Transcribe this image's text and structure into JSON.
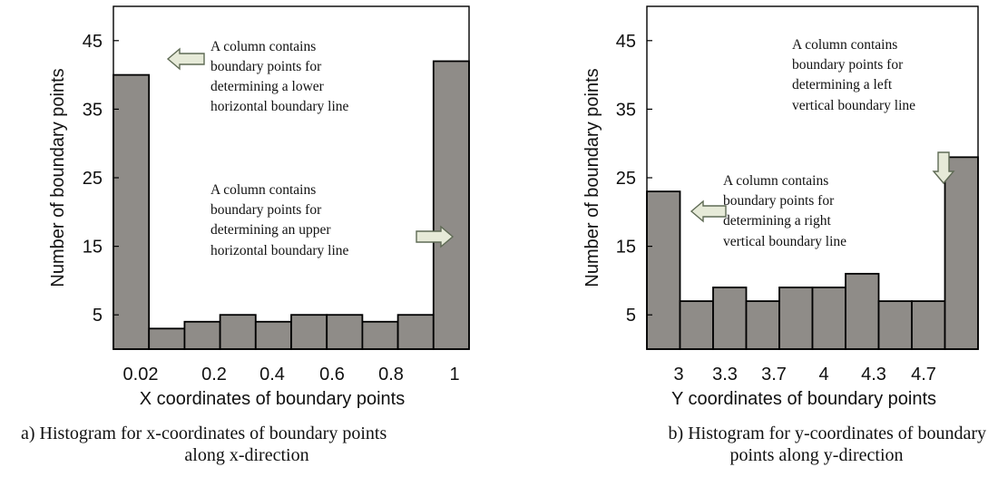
{
  "chart_data": [
    {
      "type": "bar",
      "xlabel": "X coordinates of boundary points",
      "ylabel": "Number of boundary points",
      "ylim": [
        0,
        50
      ],
      "yticks": [
        "5",
        "15",
        "25",
        "35",
        "45"
      ],
      "xticks": [
        "0.02",
        "0.2",
        "0.4",
        "0.6",
        "0.8",
        "1"
      ],
      "values": [
        40,
        3,
        4,
        5,
        4,
        5,
        5,
        4,
        5,
        42
      ],
      "bar_color": "#8f8c88",
      "annotations": [
        {
          "lines": [
            "A column contains",
            "boundary points for",
            "determining a lower",
            "horizontal boundary line"
          ]
        },
        {
          "lines": [
            "A column contains",
            "boundary points for",
            "determining an upper",
            "horizontal boundary line"
          ]
        }
      ],
      "caption": [
        "a) Histogram for x-coordinates of boundary points",
        "along x-direction"
      ]
    },
    {
      "type": "bar",
      "xlabel": "Y coordinates of boundary points",
      "ylabel": "Number of boundary points",
      "ylim": [
        0,
        50
      ],
      "yticks": [
        "5",
        "15",
        "25",
        "35",
        "45"
      ],
      "xticks": [
        "3",
        "3.3",
        "3.7",
        "4",
        "4.3",
        "4.7"
      ],
      "values": [
        23,
        7,
        9,
        7,
        9,
        9,
        11,
        7,
        7,
        28
      ],
      "bar_color": "#8f8c88",
      "annotations": [
        {
          "lines": [
            "A column contains",
            "boundary points for",
            "determining a left",
            "vertical boundary line"
          ]
        },
        {
          "lines": [
            "A column contains",
            "boundary points for",
            "determining a right",
            "vertical boundary line"
          ]
        }
      ],
      "caption": [
        "b) Histogram for y-coordinates of boundary",
        "points along y-direction"
      ]
    }
  ]
}
